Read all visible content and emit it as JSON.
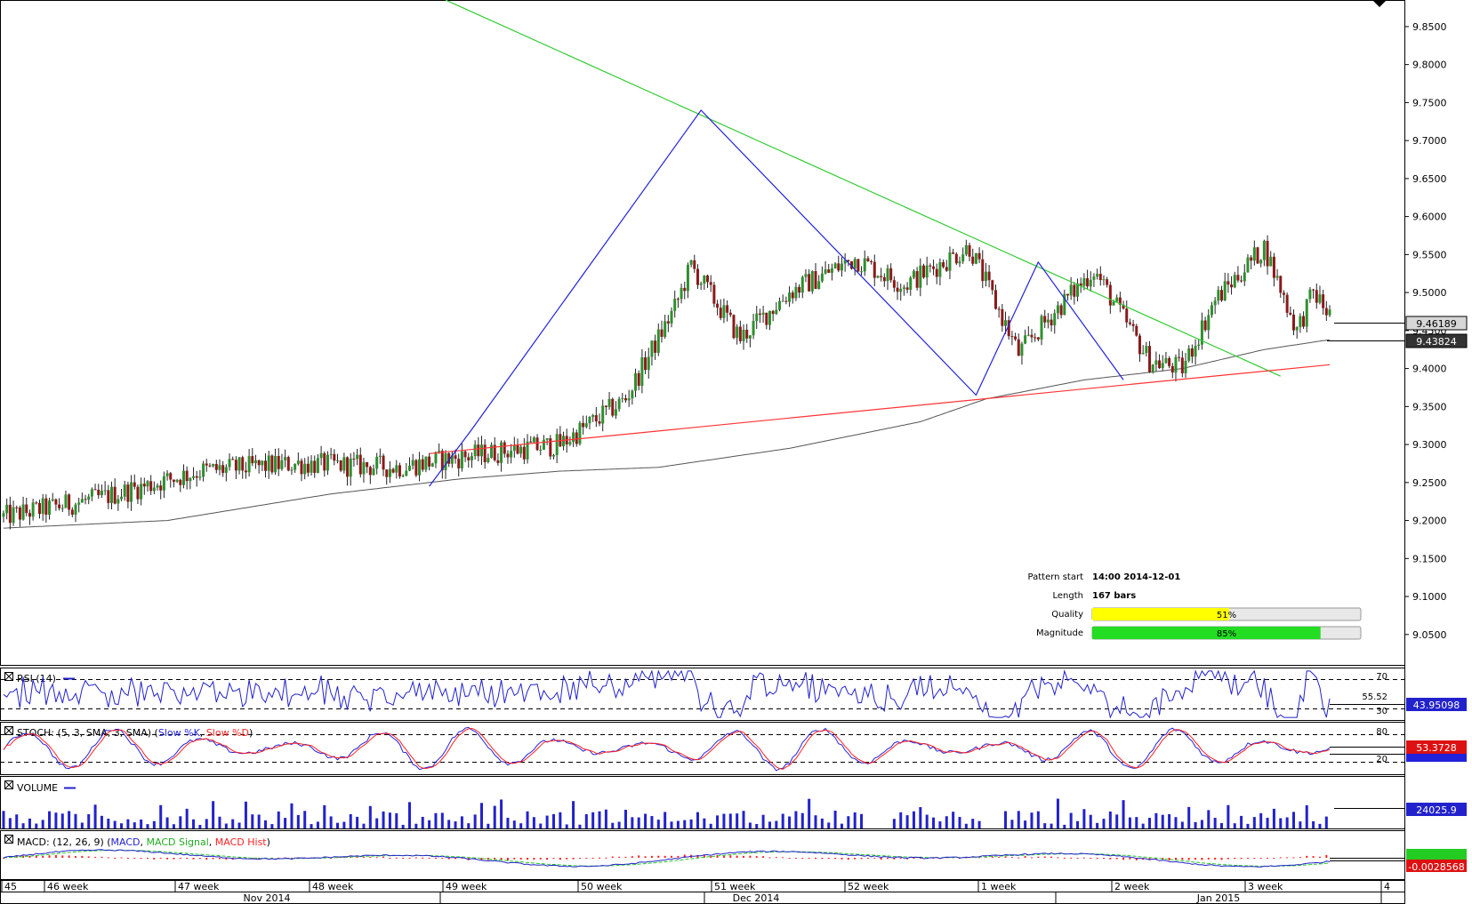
{
  "colors": {
    "bull": "#2f8f2f",
    "bear": "#8b1a1a",
    "ma": "#555555",
    "resistance": "#33cc33",
    "support": "#ff3333",
    "zigzag": "#2222dd",
    "rsi": "#2222cc",
    "stoch_k": "#2222dd",
    "stoch_d": "#ff2222",
    "volume": "#2222cc",
    "macd": "#2222cc",
    "macd_signal": "#22cc22",
    "macd_hist": "#ff2222",
    "quality_bar": "#ffff00",
    "magnitude_bar": "#22dd22"
  },
  "chart_data": {
    "type": "candlestick",
    "instrument": "",
    "ylim": [
      9.01,
      9.885
    ],
    "y_ticks": [
      "9.0500",
      "9.1000",
      "9.1500",
      "9.2000",
      "9.2500",
      "9.3000",
      "9.3500",
      "9.4000",
      "9.4500",
      "9.5000",
      "9.5500",
      "9.6000",
      "9.6500",
      "9.7000",
      "9.7500",
      "9.8000",
      "9.8500"
    ],
    "price_labels": {
      "last": "9.46189",
      "ma": "9.43824"
    },
    "close_trend_anchors": [
      [
        0,
        9.205
      ],
      [
        30,
        9.23
      ],
      [
        60,
        9.265
      ],
      [
        90,
        9.275
      ],
      [
        120,
        9.27
      ],
      [
        150,
        9.29
      ],
      [
        170,
        9.3
      ],
      [
        190,
        9.36
      ],
      [
        205,
        9.48
      ],
      [
        210,
        9.535
      ],
      [
        225,
        9.44
      ],
      [
        240,
        9.5
      ],
      [
        260,
        9.545
      ],
      [
        275,
        9.51
      ],
      [
        295,
        9.56
      ],
      [
        310,
        9.42
      ],
      [
        320,
        9.47
      ],
      [
        333,
        9.53
      ],
      [
        350,
        9.41
      ],
      [
        360,
        9.4
      ],
      [
        370,
        9.49
      ],
      [
        385,
        9.56
      ],
      [
        395,
        9.45
      ],
      [
        400,
        9.5
      ],
      [
        405,
        9.47
      ]
    ],
    "ma200_anchors": [
      [
        0,
        9.19
      ],
      [
        50,
        9.2
      ],
      [
        100,
        9.235
      ],
      [
        140,
        9.255
      ],
      [
        170,
        9.265
      ],
      [
        200,
        9.27
      ],
      [
        240,
        9.295
      ],
      [
        280,
        9.33
      ],
      [
        300,
        9.36
      ],
      [
        330,
        9.385
      ],
      [
        360,
        9.4
      ],
      [
        385,
        9.425
      ],
      [
        405,
        9.438
      ]
    ],
    "x_labels_top": [
      "45",
      "46 week",
      "47 week",
      "48 week",
      "49 week",
      "50 week",
      "51 week",
      "52 week",
      "1 week",
      "2 week",
      "3 week",
      "4"
    ],
    "x_labels_bottom": [
      "Nov 2014",
      "Dec 2014",
      "Jan 2015"
    ],
    "pattern": {
      "pattern_start_label": "Pattern start",
      "pattern_start": "14:00 2014-12-01",
      "length_label": "Length",
      "length": "167 bars",
      "quality_label": "Quality",
      "quality": "51%",
      "quality_value": 51,
      "magnitude_label": "Magnitude",
      "magnitude": "85%",
      "magnitude_value": 85
    },
    "trendlines": {
      "resistance": [
        [
          135,
          9.885
        ],
        [
          390,
          9.39
        ]
      ],
      "support": [
        [
          130,
          9.288
        ],
        [
          405,
          9.405
        ]
      ],
      "zigzag": [
        [
          130,
          9.245
        ],
        [
          143,
          9.32
        ],
        [
          213,
          9.74
        ],
        [
          297,
          9.365
        ],
        [
          316,
          9.54
        ],
        [
          342,
          9.385
        ]
      ]
    },
    "indicators": {
      "rsi": {
        "title": "RSI (14)",
        "value": "43.95098",
        "prev": "55.52",
        "levels": [
          "70",
          "30"
        ]
      },
      "stoch": {
        "title_prefix": "STOCH: (5, 3, SMA, 3, SMA) (",
        "k_name": "Slow %K",
        "d_name": "Slow %D",
        "title_suffix": ")",
        "value": "53.3728",
        "levels": [
          "80",
          "20"
        ]
      },
      "volume": {
        "title": "VOLUME",
        "value": "24025.9"
      },
      "macd": {
        "title_prefix": "MACD: (12, 26, 9) (",
        "macd_name": "MACD",
        "signal_name": "MACD Signal",
        "hist_name": "MACD Hist",
        "title_suffix": ")",
        "value": "-0.0028568"
      }
    }
  }
}
